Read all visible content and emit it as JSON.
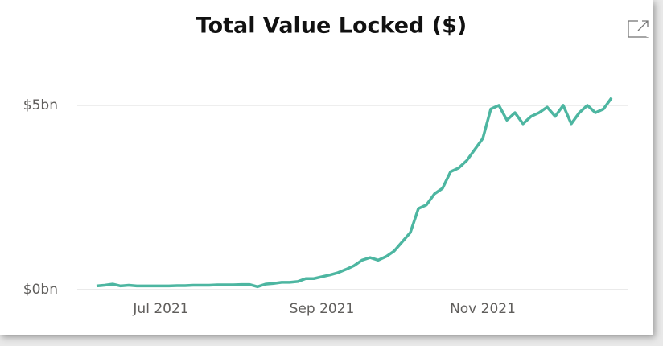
{
  "chart_data": {
    "type": "line",
    "title": "Total Value Locked ($)",
    "categories": [
      null,
      null,
      null,
      null,
      null,
      null,
      null,
      null,
      "Jul 2021",
      null,
      null,
      null,
      null,
      null,
      null,
      null,
      null,
      null,
      null,
      null,
      null,
      null,
      null,
      null,
      null,
      null,
      null,
      null,
      "Sep 2021",
      null,
      null,
      null,
      null,
      null,
      null,
      null,
      null,
      null,
      null,
      null,
      null,
      null,
      null,
      null,
      null,
      null,
      null,
      null,
      "Nov 2021",
      null,
      null,
      null,
      null,
      null,
      null,
      null,
      null,
      null,
      null,
      null,
      null,
      null,
      null,
      null,
      null
    ],
    "series": [
      {
        "color": "#4db6a1",
        "values": [
          0.1,
          0.12,
          0.15,
          0.1,
          0.12,
          0.1,
          0.1,
          0.1,
          0.1,
          0.1,
          0.11,
          0.11,
          0.12,
          0.12,
          0.12,
          0.13,
          0.13,
          0.13,
          0.14,
          0.14,
          0.08,
          0.15,
          0.17,
          0.2,
          0.2,
          0.22,
          0.3,
          0.3,
          0.35,
          0.4,
          0.46,
          0.55,
          0.65,
          0.8,
          0.87,
          0.8,
          0.9,
          1.05,
          1.3,
          1.55,
          2.2,
          2.3,
          2.6,
          2.75,
          3.2,
          3.3,
          3.5,
          3.8,
          4.1,
          4.9,
          5.0,
          4.6,
          4.8,
          4.5,
          4.7,
          4.8,
          4.95,
          4.7,
          5.0,
          4.5,
          4.8,
          5.0,
          4.8,
          4.9,
          5.2
        ]
      }
    ],
    "ylim": [
      0,
      5.5
    ],
    "yticks": [
      {
        "value": 0,
        "label": "$0bn"
      },
      {
        "value": 5,
        "label": "$5bn"
      }
    ],
    "grid": true
  }
}
